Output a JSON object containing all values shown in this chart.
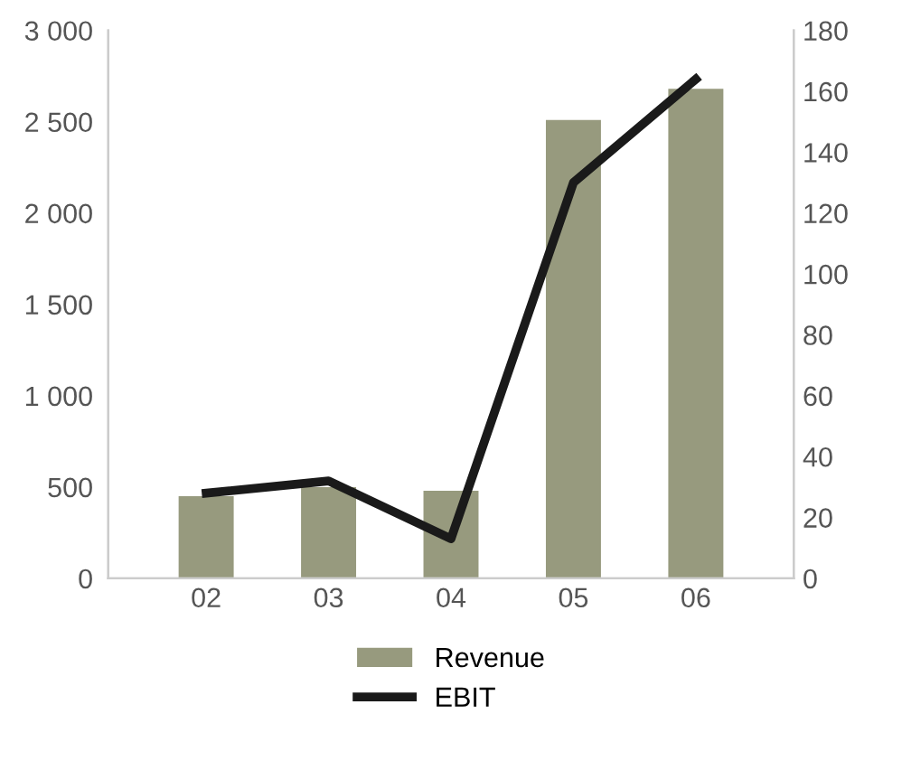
{
  "chart_data": {
    "type": "bar",
    "categories": [
      "02",
      "03",
      "04",
      "05",
      "06"
    ],
    "series": [
      {
        "name": "Revenue",
        "color": "#979a7e",
        "values": [
          450,
          500,
          480,
          2510,
          2680
        ]
      },
      {
        "name": "EBIT",
        "type": "line",
        "axis": "y2",
        "color": "#1a1a1a",
        "values": [
          28,
          32,
          13,
          130,
          164
        ]
      }
    ],
    "ylim": [
      0,
      3000
    ],
    "yticks": [
      0,
      500,
      {
        "value": 1000,
        "label": "1 000"
      },
      {
        "value": 1500,
        "label": "1 500"
      },
      {
        "value": 2000,
        "label": "2 000"
      },
      {
        "value": 2500,
        "label": "2 500"
      },
      {
        "value": 3000,
        "label": "3 000"
      }
    ],
    "y2lim": [
      0,
      180
    ],
    "y2ticks": [
      0,
      20,
      40,
      60,
      80,
      100,
      120,
      140,
      160,
      180
    ],
    "legend": "bottom",
    "marker": "none",
    "line_style": "solid"
  }
}
